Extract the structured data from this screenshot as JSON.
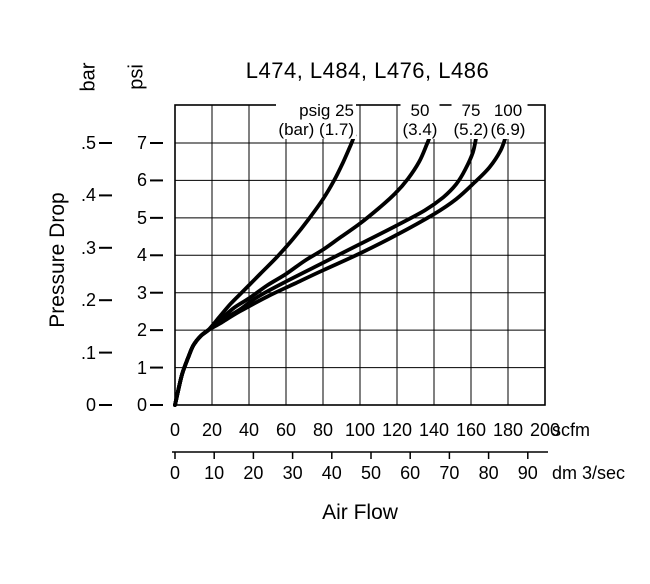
{
  "title": "L474, L484, L476, L486",
  "pressure_axis": {
    "label": "Pressure Drop",
    "bar_unit": "bar",
    "psi_unit": "psi",
    "bar_ticks": [
      "0",
      ".1",
      ".2",
      ".3",
      ".4",
      ".5"
    ],
    "psi_ticks": [
      "0",
      "1",
      "2",
      "3",
      "4",
      "5",
      "6",
      "7"
    ]
  },
  "flow_axis": {
    "label": "Air Flow",
    "scfm_unit": "scfm",
    "scfm_ticks": [
      "0",
      "20",
      "40",
      "60",
      "80",
      "100",
      "120",
      "140",
      "160",
      "180",
      "200"
    ],
    "dm_unit": "dm 3/sec",
    "dm_ticks": [
      "0",
      "10",
      "20",
      "30",
      "40",
      "50",
      "60",
      "70",
      "80",
      "90"
    ]
  },
  "curve_labels": [
    {
      "line1": "psig 25",
      "line2": "(bar) (1.7)"
    },
    {
      "line1": "50",
      "line2": "(3.4)"
    },
    {
      "line1": "75",
      "line2": "(5.2)"
    },
    {
      "line1": "100",
      "line2": "(6.9)"
    }
  ],
  "chart_data": {
    "type": "line",
    "title": "L474, L484, L476, L486",
    "xlabel": "Air Flow",
    "ylabel": "Pressure Drop",
    "x_units": [
      "scfm",
      "dm 3/sec"
    ],
    "y_units": [
      "bar",
      "psi"
    ],
    "xlim_scfm": [
      0,
      200
    ],
    "xlim_dm3s": [
      0,
      90
    ],
    "ylim_psi": [
      0,
      7
    ],
    "ylim_bar": [
      0,
      0.5
    ],
    "scfm_per_dm3s": 2.1189,
    "grid": true,
    "series": [
      {
        "name": "psig 25 (bar 1.7)",
        "points_scfm_psi": [
          [
            0,
            0
          ],
          [
            2,
            0.45
          ],
          [
            4,
            0.85
          ],
          [
            7,
            1.25
          ],
          [
            10,
            1.6
          ],
          [
            14,
            1.85
          ],
          [
            18,
            2.0
          ],
          [
            24,
            2.35
          ],
          [
            30,
            2.7
          ],
          [
            38,
            3.1
          ],
          [
            46,
            3.5
          ],
          [
            55,
            3.95
          ],
          [
            64,
            4.45
          ],
          [
            72,
            4.95
          ],
          [
            80,
            5.5
          ],
          [
            86,
            6.0
          ],
          [
            91,
            6.5
          ],
          [
            95,
            6.95
          ],
          [
            97,
            7.2
          ]
        ]
      },
      {
        "name": "psig 50 (bar 3.4)",
        "points_scfm_psi": [
          [
            0,
            0
          ],
          [
            2,
            0.45
          ],
          [
            4,
            0.85
          ],
          [
            7,
            1.25
          ],
          [
            10,
            1.6
          ],
          [
            14,
            1.85
          ],
          [
            18,
            2.0
          ],
          [
            25,
            2.3
          ],
          [
            32,
            2.6
          ],
          [
            40,
            2.85
          ],
          [
            50,
            3.2
          ],
          [
            60,
            3.5
          ],
          [
            70,
            3.85
          ],
          [
            80,
            4.15
          ],
          [
            90,
            4.5
          ],
          [
            100,
            4.85
          ],
          [
            110,
            5.25
          ],
          [
            119,
            5.65
          ],
          [
            126,
            6.05
          ],
          [
            132,
            6.5
          ],
          [
            136,
            6.95
          ],
          [
            138,
            7.2
          ]
        ]
      },
      {
        "name": "psig 75 (bar 5.2)",
        "points_scfm_psi": [
          [
            0,
            0
          ],
          [
            2,
            0.45
          ],
          [
            4,
            0.85
          ],
          [
            7,
            1.25
          ],
          [
            10,
            1.6
          ],
          [
            14,
            1.85
          ],
          [
            18,
            2.0
          ],
          [
            25,
            2.25
          ],
          [
            35,
            2.55
          ],
          [
            45,
            2.9
          ],
          [
            60,
            3.3
          ],
          [
            80,
            3.8
          ],
          [
            100,
            4.3
          ],
          [
            120,
            4.8
          ],
          [
            135,
            5.2
          ],
          [
            145,
            5.55
          ],
          [
            152,
            5.9
          ],
          [
            157,
            6.3
          ],
          [
            161,
            6.75
          ],
          [
            163,
            7.2
          ]
        ]
      },
      {
        "name": "psig 100 (bar 6.9)",
        "points_scfm_psi": [
          [
            0,
            0
          ],
          [
            2,
            0.45
          ],
          [
            4,
            0.85
          ],
          [
            7,
            1.25
          ],
          [
            10,
            1.6
          ],
          [
            14,
            1.85
          ],
          [
            18,
            2.0
          ],
          [
            25,
            2.2
          ],
          [
            35,
            2.5
          ],
          [
            50,
            2.9
          ],
          [
            65,
            3.25
          ],
          [
            80,
            3.6
          ],
          [
            100,
            4.05
          ],
          [
            120,
            4.55
          ],
          [
            140,
            5.1
          ],
          [
            152,
            5.5
          ],
          [
            162,
            5.95
          ],
          [
            170,
            6.35
          ],
          [
            176,
            6.8
          ],
          [
            179,
            7.2
          ]
        ]
      }
    ]
  }
}
